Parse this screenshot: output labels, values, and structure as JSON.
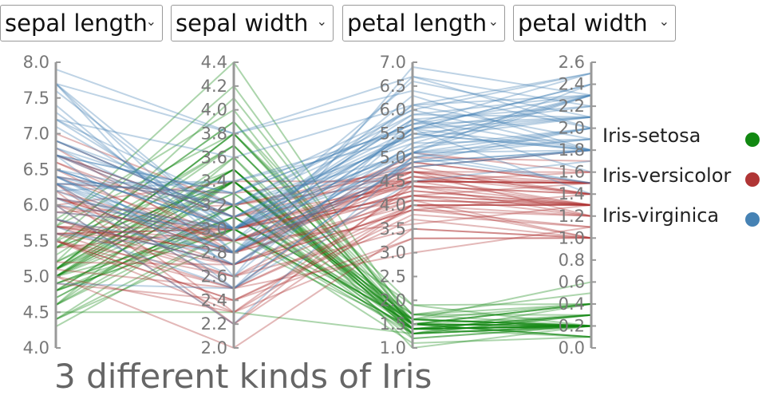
{
  "selectors": [
    {
      "label": "sepal length"
    },
    {
      "label": "sepal width"
    },
    {
      "label": "petal length"
    },
    {
      "label": "petal width"
    }
  ],
  "colors": {
    "Iris-setosa": "#118811",
    "Iris-versicolor": "#b03535",
    "Iris-virginica": "#4682b4",
    "axis": "#999999"
  },
  "chart_data": {
    "type": "line",
    "title": "3 different kinds of Iris",
    "axes": [
      {
        "name": "sepal length",
        "range": [
          4.0,
          8.0
        ],
        "ticks": [
          "4.0",
          "4.5",
          "5.0",
          "5.5",
          "6.0",
          "6.5",
          "7.0",
          "7.5",
          "8.0"
        ]
      },
      {
        "name": "sepal width",
        "range": [
          2.0,
          4.4
        ],
        "ticks": [
          "2.0",
          "2.2",
          "2.4",
          "2.6",
          "2.8",
          "3.0",
          "3.2",
          "3.4",
          "3.6",
          "3.8",
          "4.0",
          "4.2",
          "4.4"
        ]
      },
      {
        "name": "petal length",
        "range": [
          1.0,
          7.0
        ],
        "ticks": [
          "1.0",
          "1.5",
          "2.0",
          "2.5",
          "3.0",
          "3.5",
          "4.0",
          "4.5",
          "5.0",
          "5.5",
          "6.0",
          "6.5",
          "7.0"
        ]
      },
      {
        "name": "petal width",
        "range": [
          0.0,
          2.6
        ],
        "ticks": [
          "0.0",
          "0.2",
          "0.4",
          "0.6",
          "0.8",
          "1.0",
          "1.2",
          "1.4",
          "1.6",
          "1.8",
          "2.0",
          "2.2",
          "2.4",
          "2.6"
        ]
      }
    ],
    "legend": {
      "position": "right",
      "entries": [
        "Iris-setosa",
        "Iris-versicolor",
        "Iris-virginica"
      ]
    },
    "series": [
      {
        "name": "Iris-setosa",
        "values": [
          [
            5.1,
            3.5,
            1.4,
            0.2
          ],
          [
            4.9,
            3.0,
            1.4,
            0.2
          ],
          [
            4.7,
            3.2,
            1.3,
            0.2
          ],
          [
            4.6,
            3.1,
            1.5,
            0.2
          ],
          [
            5.0,
            3.6,
            1.4,
            0.2
          ],
          [
            5.4,
            3.9,
            1.7,
            0.4
          ],
          [
            4.6,
            3.4,
            1.4,
            0.3
          ],
          [
            5.0,
            3.4,
            1.5,
            0.2
          ],
          [
            4.4,
            2.9,
            1.4,
            0.2
          ],
          [
            4.9,
            3.1,
            1.5,
            0.1
          ],
          [
            5.4,
            3.7,
            1.5,
            0.2
          ],
          [
            4.8,
            3.4,
            1.6,
            0.2
          ],
          [
            4.8,
            3.0,
            1.4,
            0.1
          ],
          [
            4.3,
            3.0,
            1.1,
            0.1
          ],
          [
            5.8,
            4.0,
            1.2,
            0.2
          ],
          [
            5.7,
            4.4,
            1.5,
            0.4
          ],
          [
            5.4,
            3.9,
            1.3,
            0.4
          ],
          [
            5.1,
            3.5,
            1.4,
            0.3
          ],
          [
            5.7,
            3.8,
            1.7,
            0.3
          ],
          [
            5.1,
            3.8,
            1.5,
            0.3
          ],
          [
            5.4,
            3.4,
            1.7,
            0.2
          ],
          [
            5.1,
            3.7,
            1.5,
            0.4
          ],
          [
            4.6,
            3.6,
            1.0,
            0.2
          ],
          [
            5.1,
            3.3,
            1.7,
            0.5
          ],
          [
            4.8,
            3.4,
            1.9,
            0.2
          ],
          [
            5.0,
            3.0,
            1.6,
            0.2
          ],
          [
            5.0,
            3.4,
            1.6,
            0.4
          ],
          [
            5.2,
            3.5,
            1.5,
            0.2
          ],
          [
            5.2,
            3.4,
            1.4,
            0.2
          ],
          [
            4.7,
            3.2,
            1.6,
            0.2
          ],
          [
            4.8,
            3.1,
            1.6,
            0.2
          ],
          [
            5.4,
            3.4,
            1.5,
            0.4
          ],
          [
            5.2,
            4.1,
            1.5,
            0.1
          ],
          [
            5.5,
            4.2,
            1.4,
            0.2
          ],
          [
            4.9,
            3.1,
            1.5,
            0.1
          ],
          [
            5.0,
            3.2,
            1.2,
            0.2
          ],
          [
            5.5,
            3.5,
            1.3,
            0.2
          ],
          [
            4.4,
            3.0,
            1.3,
            0.2
          ],
          [
            5.1,
            3.4,
            1.5,
            0.2
          ],
          [
            5.0,
            3.5,
            1.3,
            0.3
          ],
          [
            4.5,
            2.3,
            1.3,
            0.3
          ],
          [
            4.4,
            3.2,
            1.3,
            0.2
          ],
          [
            5.0,
            3.5,
            1.6,
            0.6
          ],
          [
            5.1,
            3.8,
            1.9,
            0.4
          ],
          [
            4.8,
            3.0,
            1.4,
            0.3
          ],
          [
            5.1,
            3.8,
            1.6,
            0.2
          ],
          [
            4.6,
            3.2,
            1.4,
            0.2
          ],
          [
            5.3,
            3.7,
            1.5,
            0.2
          ],
          [
            5.0,
            3.3,
            1.4,
            0.2
          ]
        ]
      },
      {
        "name": "Iris-versicolor",
        "values": [
          [
            7.0,
            3.2,
            4.7,
            1.4
          ],
          [
            6.4,
            3.2,
            4.5,
            1.5
          ],
          [
            6.9,
            3.1,
            4.9,
            1.5
          ],
          [
            5.5,
            2.3,
            4.0,
            1.3
          ],
          [
            6.5,
            2.8,
            4.6,
            1.5
          ],
          [
            5.7,
            2.8,
            4.5,
            1.3
          ],
          [
            6.3,
            3.3,
            4.7,
            1.6
          ],
          [
            4.9,
            2.4,
            3.3,
            1.0
          ],
          [
            6.6,
            2.9,
            4.6,
            1.3
          ],
          [
            5.2,
            2.7,
            3.9,
            1.4
          ],
          [
            5.0,
            2.0,
            3.5,
            1.0
          ],
          [
            5.9,
            3.0,
            4.2,
            1.5
          ],
          [
            6.0,
            2.2,
            4.0,
            1.0
          ],
          [
            6.1,
            2.9,
            4.7,
            1.4
          ],
          [
            5.6,
            2.9,
            3.6,
            1.3
          ],
          [
            6.7,
            3.1,
            4.4,
            1.4
          ],
          [
            5.6,
            3.0,
            4.5,
            1.5
          ],
          [
            5.8,
            2.7,
            4.1,
            1.0
          ],
          [
            6.2,
            2.2,
            4.5,
            1.5
          ],
          [
            5.6,
            2.5,
            3.9,
            1.1
          ],
          [
            5.9,
            3.2,
            4.8,
            1.8
          ],
          [
            6.1,
            2.8,
            4.0,
            1.3
          ],
          [
            6.3,
            2.5,
            4.9,
            1.5
          ],
          [
            6.1,
            2.8,
            4.7,
            1.2
          ],
          [
            6.4,
            2.9,
            4.3,
            1.3
          ],
          [
            6.6,
            3.0,
            4.4,
            1.4
          ],
          [
            6.8,
            2.8,
            4.8,
            1.4
          ],
          [
            6.7,
            3.0,
            5.0,
            1.7
          ],
          [
            6.0,
            2.9,
            4.5,
            1.5
          ],
          [
            5.7,
            2.6,
            3.5,
            1.0
          ],
          [
            5.5,
            2.4,
            3.8,
            1.1
          ],
          [
            5.5,
            2.4,
            3.7,
            1.0
          ],
          [
            5.8,
            2.7,
            3.9,
            1.2
          ],
          [
            6.0,
            2.7,
            5.1,
            1.6
          ],
          [
            5.4,
            3.0,
            4.5,
            1.5
          ],
          [
            6.0,
            3.4,
            4.5,
            1.6
          ],
          [
            6.7,
            3.1,
            4.7,
            1.5
          ],
          [
            6.3,
            2.3,
            4.4,
            1.3
          ],
          [
            5.6,
            3.0,
            4.1,
            1.3
          ],
          [
            5.5,
            2.5,
            4.0,
            1.3
          ],
          [
            5.5,
            2.6,
            4.4,
            1.2
          ],
          [
            6.1,
            3.0,
            4.6,
            1.4
          ],
          [
            5.8,
            2.6,
            4.0,
            1.2
          ],
          [
            5.0,
            2.3,
            3.3,
            1.0
          ],
          [
            5.6,
            2.7,
            4.2,
            1.3
          ],
          [
            5.7,
            3.0,
            4.2,
            1.2
          ],
          [
            5.7,
            2.9,
            4.2,
            1.3
          ],
          [
            6.2,
            2.9,
            4.3,
            1.3
          ],
          [
            5.1,
            2.5,
            3.0,
            1.1
          ],
          [
            5.7,
            2.8,
            4.1,
            1.3
          ]
        ]
      },
      {
        "name": "Iris-virginica",
        "values": [
          [
            6.3,
            3.3,
            6.0,
            2.5
          ],
          [
            5.8,
            2.7,
            5.1,
            1.9
          ],
          [
            7.1,
            3.0,
            5.9,
            2.1
          ],
          [
            6.3,
            2.9,
            5.6,
            1.8
          ],
          [
            6.5,
            3.0,
            5.8,
            2.2
          ],
          [
            7.6,
            3.0,
            6.6,
            2.1
          ],
          [
            4.9,
            2.5,
            4.5,
            1.7
          ],
          [
            7.3,
            2.9,
            6.3,
            1.8
          ],
          [
            6.7,
            2.5,
            5.8,
            1.8
          ],
          [
            7.2,
            3.6,
            6.1,
            2.5
          ],
          [
            6.5,
            3.2,
            5.1,
            2.0
          ],
          [
            6.4,
            2.7,
            5.3,
            1.9
          ],
          [
            6.8,
            3.0,
            5.5,
            2.1
          ],
          [
            5.7,
            2.5,
            5.0,
            2.0
          ],
          [
            5.8,
            2.8,
            5.1,
            2.4
          ],
          [
            6.4,
            3.2,
            5.3,
            2.3
          ],
          [
            6.5,
            3.0,
            5.5,
            1.8
          ],
          [
            7.7,
            3.8,
            6.7,
            2.2
          ],
          [
            7.7,
            2.6,
            6.9,
            2.3
          ],
          [
            6.0,
            2.2,
            5.0,
            1.5
          ],
          [
            6.9,
            3.2,
            5.7,
            2.3
          ],
          [
            5.6,
            2.8,
            4.9,
            2.0
          ],
          [
            7.7,
            2.8,
            6.7,
            2.0
          ],
          [
            6.3,
            2.7,
            4.9,
            1.8
          ],
          [
            6.7,
            3.3,
            5.7,
            2.1
          ],
          [
            7.2,
            3.2,
            6.0,
            1.8
          ],
          [
            6.2,
            2.8,
            4.8,
            1.8
          ],
          [
            6.1,
            3.0,
            4.9,
            1.8
          ],
          [
            6.4,
            2.8,
            5.6,
            2.1
          ],
          [
            7.2,
            3.0,
            5.8,
            1.6
          ],
          [
            7.4,
            2.8,
            6.1,
            1.9
          ],
          [
            7.9,
            3.8,
            6.4,
            2.0
          ],
          [
            6.4,
            2.8,
            5.6,
            2.2
          ],
          [
            6.3,
            2.8,
            5.1,
            1.5
          ],
          [
            6.1,
            2.6,
            5.6,
            1.4
          ],
          [
            7.7,
            3.0,
            6.1,
            2.3
          ],
          [
            6.3,
            3.4,
            5.6,
            2.4
          ],
          [
            6.4,
            3.1,
            5.5,
            1.8
          ],
          [
            6.0,
            3.0,
            4.8,
            1.8
          ],
          [
            6.9,
            3.1,
            5.4,
            2.1
          ],
          [
            6.7,
            3.1,
            5.6,
            2.4
          ],
          [
            6.9,
            3.1,
            5.1,
            2.3
          ],
          [
            6.8,
            3.2,
            5.9,
            2.3
          ],
          [
            6.7,
            3.3,
            5.7,
            2.5
          ],
          [
            6.7,
            3.0,
            5.2,
            2.3
          ],
          [
            6.3,
            2.5,
            5.0,
            1.9
          ],
          [
            6.5,
            3.0,
            5.2,
            2.0
          ],
          [
            6.2,
            3.4,
            5.4,
            2.3
          ],
          [
            5.9,
            3.0,
            5.1,
            1.8
          ]
        ]
      }
    ]
  }
}
